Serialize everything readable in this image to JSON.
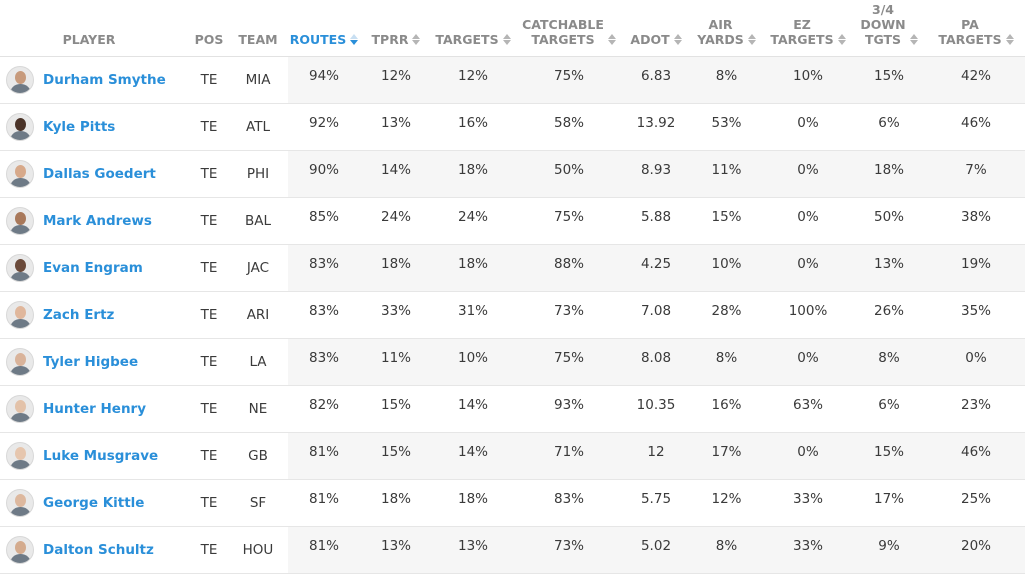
{
  "table": {
    "columns": [
      {
        "key": "player",
        "label": "PLAYER",
        "sortable": false,
        "active": false
      },
      {
        "key": "pos",
        "label": "POS",
        "sortable": false,
        "active": false
      },
      {
        "key": "team",
        "label": "TEAM",
        "sortable": false,
        "active": false
      },
      {
        "key": "routes",
        "label": "ROUTES",
        "sortable": true,
        "active": true
      },
      {
        "key": "tprr",
        "label": "TPRR",
        "sortable": true,
        "active": false
      },
      {
        "key": "targets",
        "label": "TARGETS",
        "sortable": true,
        "active": false
      },
      {
        "key": "catchable_targets",
        "label": "CATCHABLE\nTARGETS",
        "sortable": true,
        "active": false
      },
      {
        "key": "adot",
        "label": "ADOT",
        "sortable": true,
        "active": false
      },
      {
        "key": "air_yards",
        "label": "AIR\nYARDS",
        "sortable": true,
        "active": false
      },
      {
        "key": "ez_targets",
        "label": "EZ\nTARGETS",
        "sortable": true,
        "active": false
      },
      {
        "key": "down_tgts",
        "label": "3/4\nDOWN\nTGTS",
        "sortable": true,
        "active": false
      },
      {
        "key": "pa_targets",
        "label": "PA\nTARGETS",
        "sortable": true,
        "active": false
      }
    ],
    "rows": [
      {
        "player": "Durham Smythe",
        "pos": "TE",
        "team": "MIA",
        "routes": "94%",
        "tprr": "12%",
        "targets": "12%",
        "catchable_targets": "75%",
        "adot": "6.83",
        "air_yards": "8%",
        "ez_targets": "10%",
        "down_tgts": "15%",
        "pa_targets": "42%"
      },
      {
        "player": "Kyle Pitts",
        "pos": "TE",
        "team": "ATL",
        "routes": "92%",
        "tprr": "13%",
        "targets": "16%",
        "catchable_targets": "58%",
        "adot": "13.92",
        "air_yards": "53%",
        "ez_targets": "0%",
        "down_tgts": "6%",
        "pa_targets": "46%"
      },
      {
        "player": "Dallas Goedert",
        "pos": "TE",
        "team": "PHI",
        "routes": "90%",
        "tprr": "14%",
        "targets": "18%",
        "catchable_targets": "50%",
        "adot": "8.93",
        "air_yards": "11%",
        "ez_targets": "0%",
        "down_tgts": "18%",
        "pa_targets": "7%"
      },
      {
        "player": "Mark Andrews",
        "pos": "TE",
        "team": "BAL",
        "routes": "85%",
        "tprr": "24%",
        "targets": "24%",
        "catchable_targets": "75%",
        "adot": "5.88",
        "air_yards": "15%",
        "ez_targets": "0%",
        "down_tgts": "50%",
        "pa_targets": "38%"
      },
      {
        "player": "Evan Engram",
        "pos": "TE",
        "team": "JAC",
        "routes": "83%",
        "tprr": "18%",
        "targets": "18%",
        "catchable_targets": "88%",
        "adot": "4.25",
        "air_yards": "10%",
        "ez_targets": "0%",
        "down_tgts": "13%",
        "pa_targets": "19%"
      },
      {
        "player": "Zach Ertz",
        "pos": "TE",
        "team": "ARI",
        "routes": "83%",
        "tprr": "33%",
        "targets": "31%",
        "catchable_targets": "73%",
        "adot": "7.08",
        "air_yards": "28%",
        "ez_targets": "100%",
        "down_tgts": "26%",
        "pa_targets": "35%"
      },
      {
        "player": "Tyler Higbee",
        "pos": "TE",
        "team": "LA",
        "routes": "83%",
        "tprr": "11%",
        "targets": "10%",
        "catchable_targets": "75%",
        "adot": "8.08",
        "air_yards": "8%",
        "ez_targets": "0%",
        "down_tgts": "8%",
        "pa_targets": "0%"
      },
      {
        "player": "Hunter Henry",
        "pos": "TE",
        "team": "NE",
        "routes": "82%",
        "tprr": "15%",
        "targets": "14%",
        "catchable_targets": "93%",
        "adot": "10.35",
        "air_yards": "16%",
        "ez_targets": "63%",
        "down_tgts": "6%",
        "pa_targets": "23%"
      },
      {
        "player": "Luke Musgrave",
        "pos": "TE",
        "team": "GB",
        "routes": "81%",
        "tprr": "15%",
        "targets": "14%",
        "catchable_targets": "71%",
        "adot": "12",
        "air_yards": "17%",
        "ez_targets": "0%",
        "down_tgts": "15%",
        "pa_targets": "46%"
      },
      {
        "player": "George Kittle",
        "pos": "TE",
        "team": "SF",
        "routes": "81%",
        "tprr": "18%",
        "targets": "18%",
        "catchable_targets": "83%",
        "adot": "5.75",
        "air_yards": "12%",
        "ez_targets": "33%",
        "down_tgts": "17%",
        "pa_targets": "25%"
      },
      {
        "player": "Dalton Schultz",
        "pos": "TE",
        "team": "HOU",
        "routes": "81%",
        "tprr": "13%",
        "targets": "13%",
        "catchable_targets": "73%",
        "adot": "5.02",
        "air_yards": "8%",
        "ez_targets": "33%",
        "down_tgts": "9%",
        "pa_targets": "20%"
      }
    ]
  },
  "colors": {
    "accent": "#2a8fd9",
    "header_text": "#8a8a8a",
    "stripe": "#f6f6f6",
    "border": "#e6e6e6"
  },
  "icons": {
    "avatar": "player-headshot-icon",
    "sort": "sort-arrows-icon",
    "sort_active": "sort-desc-icon"
  }
}
